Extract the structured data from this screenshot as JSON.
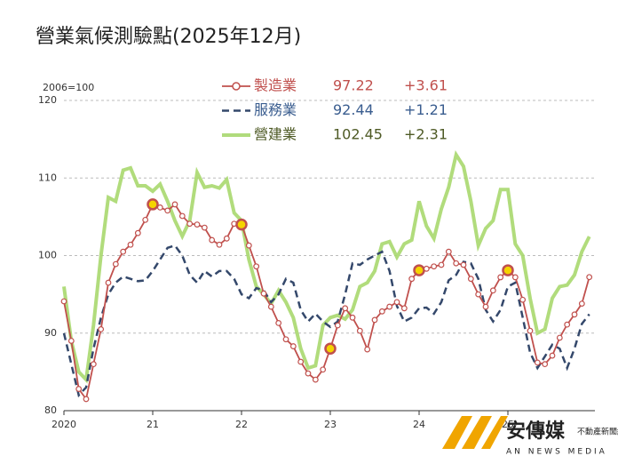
{
  "chart_data": {
    "type": "line",
    "title": "營業氣候測驗點(2025年12月)",
    "y_axis_label": "2006=100",
    "categories": [
      "2020",
      null,
      null,
      null,
      null,
      null,
      null,
      null,
      null,
      null,
      null,
      null,
      "21",
      null,
      null,
      null,
      null,
      null,
      null,
      null,
      null,
      null,
      null,
      null,
      "22",
      null,
      null,
      null,
      null,
      null,
      null,
      null,
      null,
      null,
      null,
      null,
      "23",
      null,
      null,
      null,
      null,
      null,
      null,
      null,
      null,
      null,
      null,
      null,
      "24",
      null,
      null,
      null,
      null,
      null,
      null,
      null,
      null,
      null,
      null,
      null,
      "25",
      null,
      null,
      null,
      null,
      null,
      null,
      null,
      null,
      null,
      null,
      null
    ],
    "ylim": [
      80,
      120
    ],
    "yticks": [
      80,
      90,
      100,
      110,
      120
    ],
    "grid": true,
    "highlight_color": "#f5d400",
    "series": [
      {
        "name": "製造業",
        "color": "#c0504d",
        "style": "marker",
        "last_label": "97.22",
        "change": "+3.61",
        "highlight": [
          12,
          24,
          36,
          48,
          60
        ],
        "values": [
          94.1,
          89,
          82.8,
          81.5,
          86,
          90.5,
          96.5,
          98.9,
          100.5,
          101.4,
          102.9,
          104.6,
          106.6,
          106.2,
          105.8,
          106.6,
          105.1,
          104.1,
          104,
          103.6,
          102,
          101.4,
          102.2,
          104.1,
          104,
          101.3,
          98.6,
          95.1,
          93.4,
          91.3,
          89.2,
          88.3,
          86.3,
          84.8,
          84,
          85.3,
          88,
          91,
          93.2,
          92,
          90.3,
          87.9,
          91.7,
          92.8,
          93.4,
          94,
          93.2,
          97,
          98.1,
          98.3,
          98.6,
          98.8,
          100.5,
          99,
          98.8,
          97,
          95,
          93.4,
          95.5,
          97.2,
          98.1,
          97.2,
          94.3,
          90.3,
          86.2,
          86,
          87.1,
          89.4,
          91.1,
          92.4,
          93.8,
          97.22
        ]
      },
      {
        "name": "服務業",
        "color": "#34486b",
        "style": "dashed",
        "last_label": "92.44",
        "change": "+1.21",
        "values": [
          90,
          86,
          82,
          83,
          88,
          92,
          95,
          96.5,
          97.3,
          97,
          96.7,
          96.8,
          98,
          99.5,
          101,
          101.3,
          100,
          97.5,
          96.5,
          98,
          97.3,
          98,
          98,
          97,
          95,
          94.5,
          95.8,
          95.5,
          94,
          95,
          97,
          96.5,
          93,
          91.5,
          92.5,
          91.5,
          90.8,
          91.5,
          95,
          99,
          98.8,
          99.5,
          100,
          100.5,
          98,
          93.5,
          91.5,
          92,
          93.2,
          93.3,
          92.5,
          94,
          96.8,
          97.5,
          99.2,
          99,
          97,
          93,
          91.5,
          93,
          96,
          96.5,
          92,
          87.5,
          85.5,
          87,
          88.5,
          88,
          85.5,
          88,
          91.2,
          92.44
        ]
      },
      {
        "name": "營建業",
        "color": "#a8d86e",
        "style": "thick",
        "last_label": "102.45",
        "change": "+2.31",
        "values": [
          96,
          89,
          85,
          84,
          91,
          100,
          107.5,
          107,
          111,
          111.3,
          109,
          109,
          108.3,
          109.2,
          107,
          104.5,
          102.5,
          104.5,
          110.7,
          108.8,
          109,
          108.7,
          109.8,
          105.5,
          104.5,
          99.5,
          96,
          95,
          93.8,
          95.5,
          94,
          92,
          88,
          85.5,
          85.8,
          91,
          92,
          92.3,
          91.8,
          93,
          96,
          96.5,
          98,
          101.5,
          101.8,
          99.8,
          101.5,
          102,
          107,
          103.8,
          102.2,
          106,
          108.8,
          113,
          111.5,
          107,
          101.3,
          103.5,
          104.5,
          108.5,
          108.5,
          101.5,
          100,
          94.5,
          90,
          90.5,
          94.5,
          96,
          96.2,
          97.5,
          100.5,
          102.45
        ]
      }
    ]
  },
  "logo": {
    "brand": "安傳媒",
    "sub": "不動產新聞網",
    "english": "AN NEWS MEDIA"
  }
}
